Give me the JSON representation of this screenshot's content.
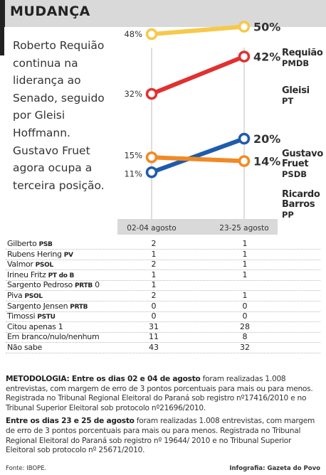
{
  "header": {
    "title": "MUDANÇA"
  },
  "intro": "Roberto Requião continua na liderança ao Senado, seguido por Gleisi Hoffmann. Gustavo Fruet agora ocupa a terceira posição.",
  "colors": {
    "requiao": "#f6c94a",
    "gleisi": "#e03131",
    "fruet": "#1f5bad",
    "ricardo": "#f08a24",
    "periods_bg": "#d9d9d9"
  },
  "chart_data": {
    "type": "line",
    "categories": [
      "02-04 agosto",
      "23-25 agosto"
    ],
    "series": [
      {
        "name": "Requião",
        "party": "PMDB",
        "values": [
          48,
          50
        ],
        "labels": [
          "48%",
          "50%"
        ]
      },
      {
        "name": "Gleisi",
        "party": "PT",
        "values": [
          32,
          42
        ],
        "labels": [
          "32%",
          "42%"
        ]
      },
      {
        "name": "Gustavo Fruet",
        "party": "PSDB",
        "values": [
          11,
          20
        ],
        "labels": [
          "11%",
          "20%"
        ]
      },
      {
        "name": "Ricardo Barros",
        "party": "PP",
        "values": [
          15,
          14
        ],
        "labels": [
          "15%",
          "14%"
        ]
      }
    ],
    "ylim": [
      0,
      55
    ]
  },
  "table": {
    "rows": [
      {
        "name": "Gilberto",
        "party": "PSB",
        "v1": "2",
        "v2": "1"
      },
      {
        "name": "Rubens Hering",
        "party": "PV",
        "v1": "1",
        "v2": "1"
      },
      {
        "name": "Valmor",
        "party": "PSOL",
        "v1": "2",
        "v2": "1"
      },
      {
        "name": "Irineu Fritz",
        "party": "PT do B",
        "v1": "1",
        "v2": "1"
      },
      {
        "name": "Sargento Pedroso",
        "party": "PRTB",
        "v1": "1",
        "v2": "0",
        "v2_inline": true
      },
      {
        "name": "Piva",
        "party": "PSOL",
        "v1": "2",
        "v2": "1"
      },
      {
        "name": "Sargento Jensen",
        "party": "PRTB",
        "v1": "0",
        "v2": "0"
      },
      {
        "name": "Timossi",
        "party": "PSTU",
        "v1": "0",
        "v2": "0"
      },
      {
        "name": "Citou apenas 1",
        "party": "",
        "v1": "31",
        "v2": "28"
      },
      {
        "name": "Em branco/nulo/nenhum",
        "party": "",
        "v1": "11",
        "v2": "8"
      },
      {
        "name": "Não sabe",
        "party": "",
        "v1": "43",
        "v2": "32"
      }
    ]
  },
  "notes": {
    "metodologia_label": "METODOLOGIA: Entre os dias 02 e 04 de agosto",
    "metodologia_text": " foram realizadas 1.008 entrevistas, com margem de erro de 3 pontos porcentuais para mais ou para menos. Registrada no Tribunal Regional Eleitoral do Paraná sob registro nº17416/2010 e no Tribunal Superior Eleitoral sob protocolo nº21696/2010.",
    "second_label": "Entre os dias 23 e 25 de agosto",
    "second_text": " foram realizadas 1.008 entrevistas, com margem de erro de 3 pontos porcentuais para mais ou para menos. Registrada no Tribunal Regional Eleitoral do Paraná sob registro nº 19644/ 2010 e no Tribunal Superior Eleitoral sob protocolo nº 25671/2010."
  },
  "footer": {
    "source": "Fonte: IBOPE.",
    "credit": "Infografia: Gazeta do Povo"
  }
}
